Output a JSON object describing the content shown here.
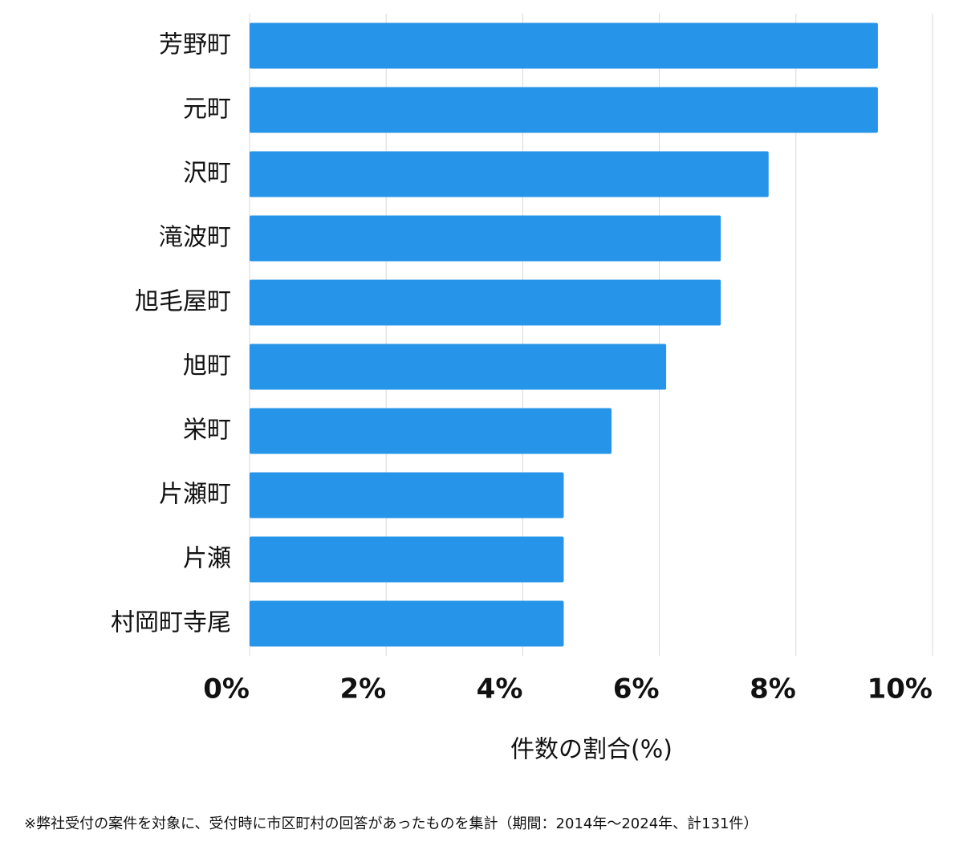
{
  "chart_data": {
    "type": "bar",
    "orientation": "horizontal",
    "categories": [
      "芳野町",
      "元町",
      "沢町",
      "滝波町",
      "旭毛屋町",
      "旭町",
      "栄町",
      "片瀬町",
      "片瀬",
      "村岡町寺尾"
    ],
    "values": [
      9.2,
      9.2,
      7.6,
      6.9,
      6.9,
      6.1,
      5.3,
      4.6,
      4.6,
      4.6
    ],
    "color": "#2694e8",
    "xlim": [
      0,
      10
    ],
    "xticks": [
      {
        "value": 0,
        "label": "0%"
      },
      {
        "value": 2,
        "label": "2%"
      },
      {
        "value": 4,
        "label": "4%"
      },
      {
        "value": 6,
        "label": "6%"
      },
      {
        "value": 8,
        "label": "8%"
      },
      {
        "value": 10,
        "label": "10%"
      }
    ],
    "grid": true,
    "x_label": "件数の割合(%)",
    "footnote": "※弊社受付の案件を対象に、受付時に市区町村の回答があったものを集計（期間：2014年〜2024年、計131件）"
  }
}
